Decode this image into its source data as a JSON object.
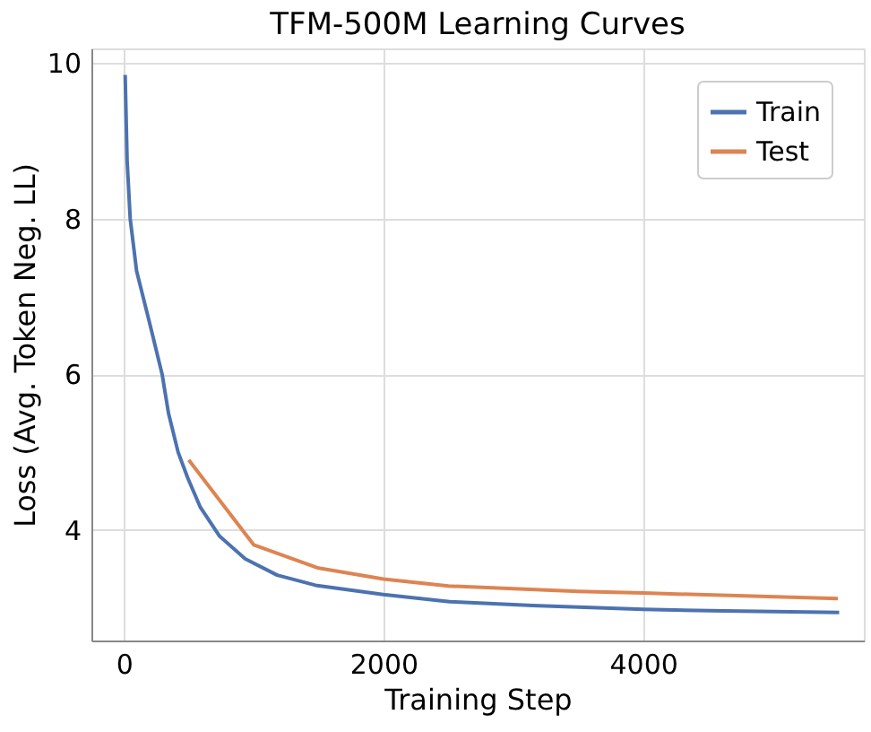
{
  "chart_data": {
    "type": "line",
    "title": "TFM-500M Learning Curves",
    "xlabel": "Training Step",
    "ylabel": "Loss (Avg. Token Neg. LL)",
    "xlim": [
      -250,
      5700
    ],
    "ylim": [
      2.58,
      10.19
    ],
    "xticks": [
      0,
      2000,
      4000
    ],
    "yticks": [
      4,
      6,
      8,
      10
    ],
    "grid": true,
    "legend": "top right",
    "line_style": "solid",
    "marker": "none",
    "series": [
      {
        "name": "Train",
        "color": "#4c72b0",
        "x": [
          10,
          25,
          49,
          98,
          197,
          295,
          344,
          418,
          492,
          590,
          738,
          935,
          1181,
          1476,
          1998,
          2510,
          3149,
          4000,
          4625,
          5510
        ],
        "values": [
          9.85,
          8.75,
          8.0,
          7.33,
          6.67,
          6.0,
          5.5,
          5.0,
          4.67,
          4.29,
          3.92,
          3.63,
          3.42,
          3.29,
          3.17,
          3.08,
          3.03,
          2.98,
          2.96,
          2.94
        ]
      },
      {
        "name": "Test",
        "color": "#dd8452",
        "x": [
          500,
          1000,
          1500,
          2000,
          2500,
          3500,
          4000,
          5500
        ],
        "values": [
          4.9,
          3.81,
          3.51,
          3.37,
          3.28,
          3.21,
          3.19,
          3.12
        ]
      }
    ]
  }
}
